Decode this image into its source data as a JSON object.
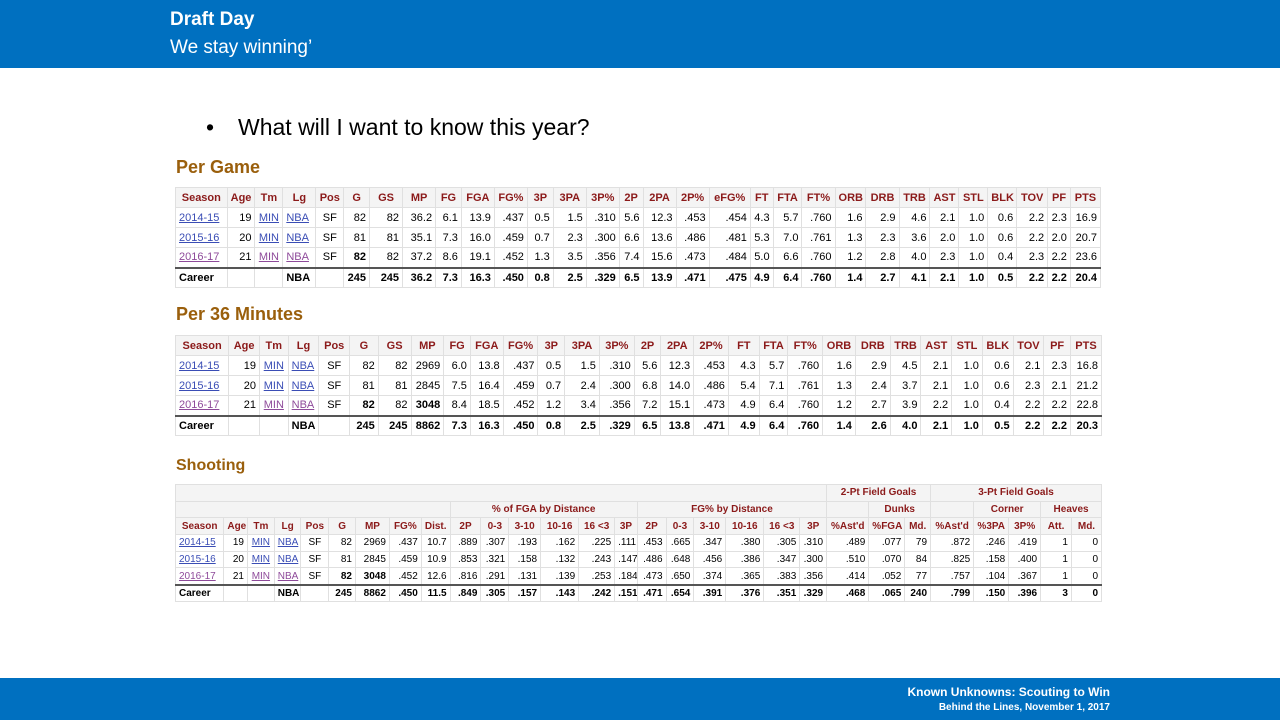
{
  "header": {
    "title": "Draft Day",
    "subtitle": "We stay winning’"
  },
  "bullet": "What will I want to know this year?",
  "footer": {
    "line1": "Known Unknowns: Scouting to Win",
    "line2": "Behind the Lines, November 1, 2017"
  },
  "per_game": {
    "title": "Per Game",
    "headers": [
      "Season",
      "Age",
      "Tm",
      "Lg",
      "Pos",
      "G",
      "GS",
      "MP",
      "FG",
      "FGA",
      "FG%",
      "3P",
      "3PA",
      "3P%",
      "2P",
      "2PA",
      "2P%",
      "eFG%",
      "FT",
      "FTA",
      "FT%",
      "ORB",
      "DRB",
      "TRB",
      "AST",
      "STL",
      "BLK",
      "TOV",
      "PF",
      "PTS"
    ],
    "rows": [
      [
        "2014-15",
        "19",
        "MIN",
        "NBA",
        "SF",
        "82",
        "82",
        "36.2",
        "6.1",
        "13.9",
        ".437",
        "0.5",
        "1.5",
        ".310",
        "5.6",
        "12.3",
        ".453",
        ".454",
        "4.3",
        "5.7",
        ".760",
        "1.6",
        "2.9",
        "4.6",
        "2.1",
        "1.0",
        "0.6",
        "2.2",
        "2.3",
        "16.9"
      ],
      [
        "2015-16",
        "20",
        "MIN",
        "NBA",
        "SF",
        "81",
        "81",
        "35.1",
        "7.3",
        "16.0",
        ".459",
        "0.7",
        "2.3",
        ".300",
        "6.6",
        "13.6",
        ".486",
        ".481",
        "5.3",
        "7.0",
        ".761",
        "1.3",
        "2.3",
        "3.6",
        "2.0",
        "1.0",
        "0.6",
        "2.2",
        "2.0",
        "20.7"
      ],
      [
        "2016-17",
        "21",
        "MIN",
        "NBA",
        "SF",
        "82",
        "82",
        "37.2",
        "8.6",
        "19.1",
        ".452",
        "1.3",
        "3.5",
        ".356",
        "7.4",
        "15.6",
        ".473",
        ".484",
        "5.0",
        "6.6",
        ".760",
        "1.2",
        "2.8",
        "4.0",
        "2.3",
        "1.0",
        "0.4",
        "2.3",
        "2.2",
        "23.6"
      ]
    ],
    "career": [
      "Career",
      "",
      "",
      "NBA",
      "",
      "245",
      "245",
      "36.2",
      "7.3",
      "16.3",
      ".450",
      "0.8",
      "2.5",
      ".329",
      "6.5",
      "13.9",
      ".471",
      ".475",
      "4.9",
      "6.4",
      ".760",
      "1.4",
      "2.7",
      "4.1",
      "2.1",
      "1.0",
      "0.5",
      "2.2",
      "2.2",
      "20.4"
    ]
  },
  "per_36": {
    "title": "Per 36 Minutes",
    "headers": [
      "Season",
      "Age",
      "Tm",
      "Lg",
      "Pos",
      "G",
      "GS",
      "MP",
      "FG",
      "FGA",
      "FG%",
      "3P",
      "3PA",
      "3P%",
      "2P",
      "2PA",
      "2P%",
      "FT",
      "FTA",
      "FT%",
      "ORB",
      "DRB",
      "TRB",
      "AST",
      "STL",
      "BLK",
      "TOV",
      "PF",
      "PTS"
    ],
    "rows": [
      [
        "2014-15",
        "19",
        "MIN",
        "NBA",
        "SF",
        "82",
        "82",
        "2969",
        "6.0",
        "13.8",
        ".437",
        "0.5",
        "1.5",
        ".310",
        "5.6",
        "12.3",
        ".453",
        "4.3",
        "5.7",
        ".760",
        "1.6",
        "2.9",
        "4.5",
        "2.1",
        "1.0",
        "0.6",
        "2.1",
        "2.3",
        "16.8"
      ],
      [
        "2015-16",
        "20",
        "MIN",
        "NBA",
        "SF",
        "81",
        "81",
        "2845",
        "7.5",
        "16.4",
        ".459",
        "0.7",
        "2.4",
        ".300",
        "6.8",
        "14.0",
        ".486",
        "5.4",
        "7.1",
        ".761",
        "1.3",
        "2.4",
        "3.7",
        "2.1",
        "1.0",
        "0.6",
        "2.3",
        "2.1",
        "21.2"
      ],
      [
        "2016-17",
        "21",
        "MIN",
        "NBA",
        "SF",
        "82",
        "82",
        "3048",
        "8.4",
        "18.5",
        ".452",
        "1.2",
        "3.4",
        ".356",
        "7.2",
        "15.1",
        ".473",
        "4.9",
        "6.4",
        ".760",
        "1.2",
        "2.7",
        "3.9",
        "2.2",
        "1.0",
        "0.4",
        "2.2",
        "2.2",
        "22.8"
      ]
    ],
    "career": [
      "Career",
      "",
      "",
      "NBA",
      "",
      "245",
      "245",
      "8862",
      "7.3",
      "16.3",
      ".450",
      "0.8",
      "2.5",
      ".329",
      "6.5",
      "13.8",
      ".471",
      "4.9",
      "6.4",
      ".760",
      "1.4",
      "2.6",
      "4.0",
      "2.1",
      "1.0",
      "0.5",
      "2.2",
      "2.2",
      "20.3"
    ]
  },
  "shooting": {
    "title": "Shooting",
    "super_headers": {
      "two_pt": "2-Pt Field Goals",
      "three_pt": "3-Pt Field Goals"
    },
    "group_headers": {
      "pct_fga": "% of FGA by Distance",
      "fg_pct": "FG% by Distance",
      "dunks": "Dunks",
      "corner": "Corner",
      "heaves": "Heaves"
    },
    "headers": [
      "Season",
      "Age",
      "Tm",
      "Lg",
      "Pos",
      "G",
      "MP",
      "FG%",
      "Dist.",
      "2P",
      "0-3",
      "3-10",
      "10-16",
      "16 <3",
      "3P",
      "2P",
      "0-3",
      "3-10",
      "10-16",
      "16 <3",
      "3P",
      "%Ast'd",
      "%FGA",
      "Md.",
      "%Ast'd",
      "%3PA",
      "3P%",
      "Att.",
      "Md."
    ],
    "rows": [
      [
        "2014-15",
        "19",
        "MIN",
        "NBA",
        "SF",
        "82",
        "2969",
        ".437",
        "10.7",
        ".889",
        ".307",
        ".193",
        ".162",
        ".225",
        ".111",
        ".453",
        ".665",
        ".347",
        ".380",
        ".305",
        ".310",
        ".489",
        ".077",
        "79",
        ".872",
        ".246",
        ".419",
        "1",
        "0"
      ],
      [
        "2015-16",
        "20",
        "MIN",
        "NBA",
        "SF",
        "81",
        "2845",
        ".459",
        "10.9",
        ".853",
        ".321",
        ".158",
        ".132",
        ".243",
        ".147",
        ".486",
        ".648",
        ".456",
        ".386",
        ".347",
        ".300",
        ".510",
        ".070",
        "84",
        ".825",
        ".158",
        ".400",
        "1",
        "0"
      ],
      [
        "2016-17",
        "21",
        "MIN",
        "NBA",
        "SF",
        "82",
        "3048",
        ".452",
        "12.6",
        ".816",
        ".291",
        ".131",
        ".139",
        ".253",
        ".184",
        ".473",
        ".650",
        ".374",
        ".365",
        ".383",
        ".356",
        ".414",
        ".052",
        "77",
        ".757",
        ".104",
        ".367",
        "1",
        "0"
      ]
    ],
    "career": [
      "Career",
      "",
      "",
      "NBA",
      "",
      "245",
      "8862",
      ".450",
      "11.5",
      ".849",
      ".305",
      ".157",
      ".143",
      ".242",
      ".151",
      ".471",
      ".654",
      ".391",
      ".376",
      ".351",
      ".329",
      ".468",
      ".065",
      "240",
      ".799",
      ".150",
      ".396",
      "3",
      "0"
    ]
  }
}
